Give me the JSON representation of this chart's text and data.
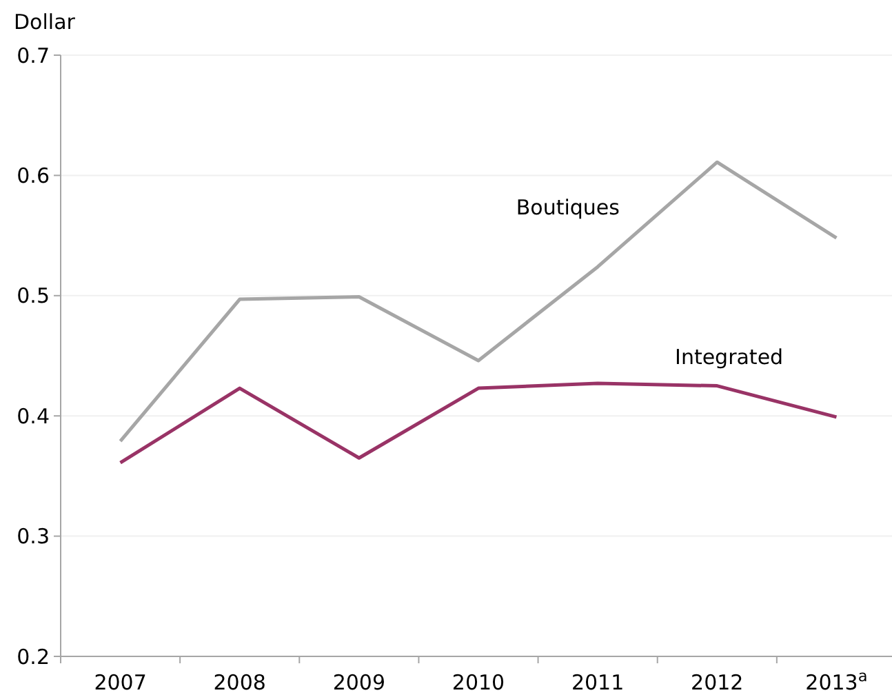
{
  "chart_data": {
    "type": "line",
    "ylabel": "Dollar",
    "categories": [
      "2007",
      "2008",
      "2009",
      "2010",
      "2011",
      "2012",
      "2013$^{a}$"
    ],
    "series": [
      {
        "name": "Boutiques",
        "color": "#a6a6a6",
        "values": [
          0.379,
          0.497,
          0.499,
          0.446,
          0.524,
          0.611,
          0.548
        ]
      },
      {
        "name": "Integrated",
        "color": "#993366",
        "values": [
          0.361,
          0.423,
          0.365,
          0.423,
          0.427,
          0.425,
          0.399
        ]
      }
    ],
    "ylim": [
      0.2,
      0.7
    ],
    "yticks": [
      0.2,
      0.3,
      0.4,
      0.5,
      0.6,
      0.7
    ],
    "grid": "y",
    "marker": "none",
    "line_style": "solid"
  }
}
